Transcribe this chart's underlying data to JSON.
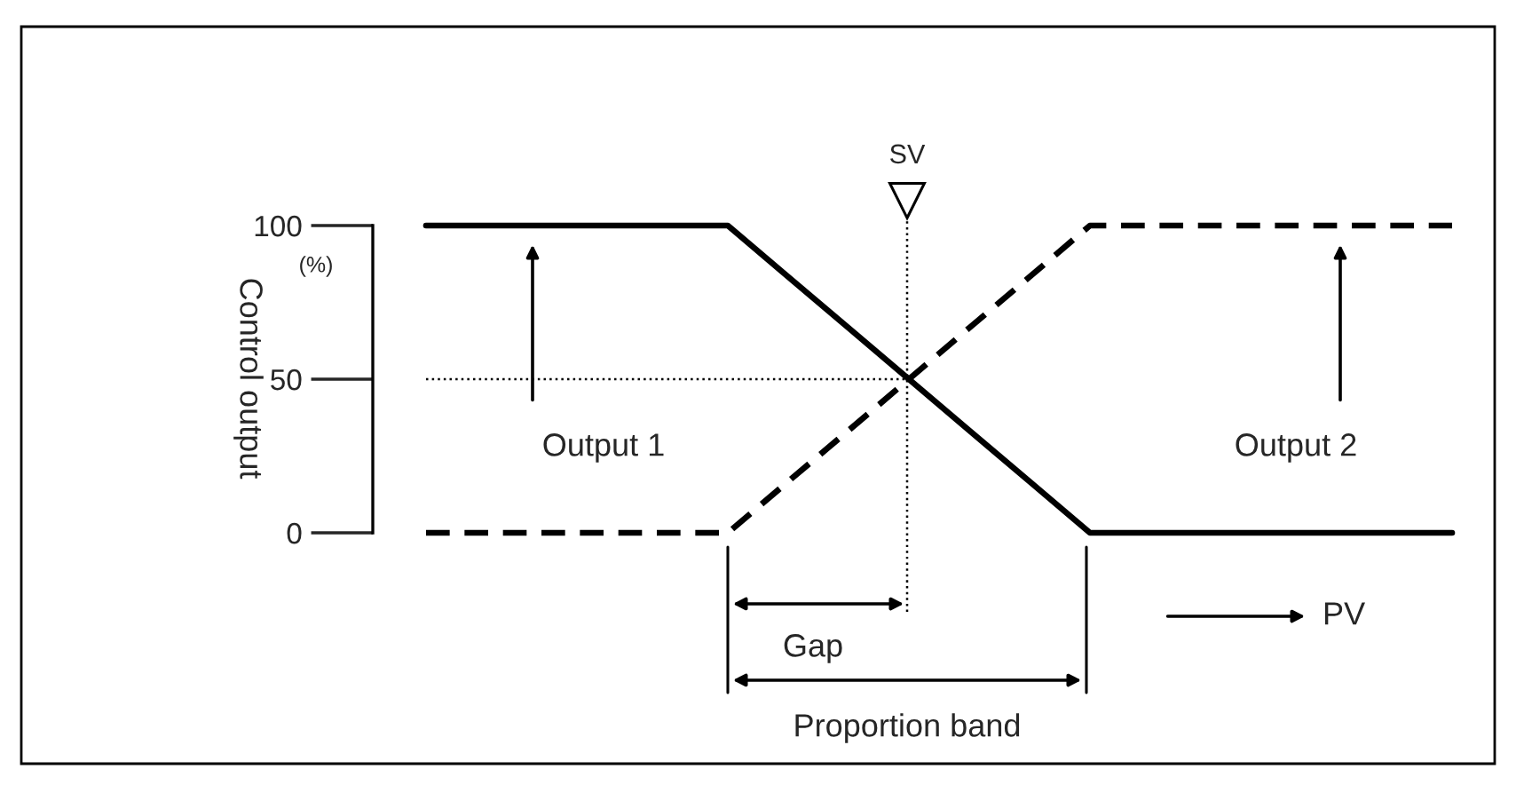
{
  "chart_data": {
    "type": "line",
    "categories": [
      null,
      null,
      null,
      null,
      null,
      null,
      null,
      null,
      null,
      null,
      null,
      null,
      null,
      null,
      null,
      null,
      null,
      null
    ],
    "series": [
      {
        "color": "#000000",
        "line_style": "solid",
        "values": [
          100,
          100,
          100,
          100,
          100,
          100,
          83.3,
          66.7,
          50,
          33.3,
          16.7,
          0,
          0,
          0,
          0,
          0,
          0,
          0
        ]
      },
      {
        "color": "#000000",
        "line_style": "dashed",
        "values": [
          0,
          0,
          0,
          0,
          0,
          0,
          16.7,
          33.3,
          50,
          66.7,
          83.3,
          100,
          100,
          100,
          100,
          100,
          100,
          100
        ]
      }
    ],
    "ylabel": "Control output",
    "ylim": [
      0,
      100
    ],
    "yticks": [
      0,
      50,
      100
    ],
    "tick_labels": "y",
    "ref_lines": [
      {
        "axis": "y",
        "value": 50,
        "line_style": "dotted",
        "color": "#000000"
      }
    ],
    "annotations": [
      "(%)",
      "Gap",
      "Proportion band",
      "PV",
      "SV",
      "Output 1",
      "Output 2"
    ],
    "grid": false,
    "legend": false
  }
}
